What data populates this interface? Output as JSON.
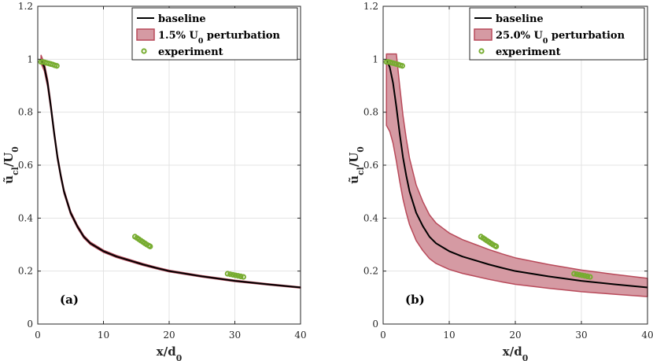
{
  "chart_data": [
    {
      "type": "line",
      "panel_label": "(a)",
      "xlabel_main": "x/d",
      "xlabel_sub": "0",
      "ylabel_main": "ũ",
      "ylabel_sub": "cl",
      "ylabel_denom": "/U",
      "ylabel_denom_sub": "0",
      "xlim": [
        0,
        40
      ],
      "ylim": [
        0,
        1.2
      ],
      "xticks": [
        0,
        10,
        20,
        30,
        40
      ],
      "xtick_labels": [
        "0",
        "10",
        "20",
        "30",
        "40"
      ],
      "yticks": [
        0,
        0.2,
        0.4,
        0.6,
        0.8,
        1.0,
        1.2
      ],
      "ytick_labels": [
        "0",
        "0.2",
        "0.4",
        "0.6",
        "0.8",
        "1",
        "1.2"
      ],
      "grid": true,
      "legend_position": "top-right",
      "legend": [
        {
          "label": "baseline",
          "kind": "line"
        },
        {
          "label": "1.5% U",
          "sub": "0",
          "suffix": " perturbation",
          "kind": "band"
        },
        {
          "label": "experiment",
          "kind": "marker"
        }
      ],
      "perturbation_fraction": 0.015,
      "series": [
        {
          "name": "baseline",
          "color": "#000000",
          "x": [
            0.5,
            1,
            1.5,
            2,
            2.5,
            3,
            3.5,
            4,
            5,
            6,
            7,
            8,
            9,
            10,
            12,
            14,
            16,
            18,
            20,
            25,
            30,
            35,
            40
          ],
          "y": [
            1.0,
            0.97,
            0.91,
            0.82,
            0.72,
            0.63,
            0.56,
            0.5,
            0.42,
            0.37,
            0.33,
            0.305,
            0.29,
            0.275,
            0.255,
            0.24,
            0.225,
            0.212,
            0.2,
            0.18,
            0.163,
            0.15,
            0.138
          ]
        },
        {
          "name": "experiment",
          "color": "#77ac30",
          "points": [
            [
              0.5,
              0.99
            ],
            [
              0.8,
              0.99
            ],
            [
              1.1,
              0.988
            ],
            [
              1.4,
              0.986
            ],
            [
              1.7,
              0.984
            ],
            [
              2.0,
              0.982
            ],
            [
              2.3,
              0.98
            ],
            [
              2.6,
              0.977
            ],
            [
              2.9,
              0.975
            ],
            [
              14.8,
              0.33
            ],
            [
              15.1,
              0.325
            ],
            [
              15.4,
              0.32
            ],
            [
              15.7,
              0.315
            ],
            [
              16.0,
              0.31
            ],
            [
              16.3,
              0.305
            ],
            [
              16.6,
              0.3
            ],
            [
              16.9,
              0.296
            ],
            [
              17.1,
              0.293
            ],
            [
              28.9,
              0.19
            ],
            [
              29.3,
              0.188
            ],
            [
              29.7,
              0.186
            ],
            [
              30.1,
              0.184
            ],
            [
              30.5,
              0.182
            ],
            [
              30.9,
              0.18
            ],
            [
              31.3,
              0.178
            ]
          ]
        }
      ]
    },
    {
      "type": "line",
      "panel_label": "(b)",
      "xlabel_main": "x/d",
      "xlabel_sub": "0",
      "ylabel_main": "ũ",
      "ylabel_sub": "cl",
      "ylabel_denom": "/U",
      "ylabel_denom_sub": "0",
      "xlim": [
        0,
        40
      ],
      "ylim": [
        0,
        1.2
      ],
      "xticks": [
        0,
        10,
        20,
        30,
        40
      ],
      "xtick_labels": [
        "0",
        "10",
        "20",
        "30",
        "40"
      ],
      "yticks": [
        0,
        0.2,
        0.4,
        0.6,
        0.8,
        1.0,
        1.2
      ],
      "ytick_labels": [
        "0",
        "0.2",
        "0.4",
        "0.6",
        "0.8",
        "1",
        "1.2"
      ],
      "grid": true,
      "legend_position": "top-right",
      "legend": [
        {
          "label": "baseline",
          "kind": "line"
        },
        {
          "label": "25.0% U",
          "sub": "0",
          "suffix": " perturbation",
          "kind": "band"
        },
        {
          "label": "experiment",
          "kind": "marker"
        }
      ],
      "perturbation_fraction": 0.25,
      "series": [
        {
          "name": "baseline",
          "color": "#000000",
          "x": [
            0.5,
            1,
            1.5,
            2,
            2.5,
            3,
            3.5,
            4,
            5,
            6,
            7,
            8,
            9,
            10,
            12,
            14,
            16,
            18,
            20,
            25,
            30,
            35,
            40
          ],
          "y": [
            1.0,
            0.97,
            0.91,
            0.82,
            0.72,
            0.63,
            0.56,
            0.5,
            0.42,
            0.37,
            0.33,
            0.305,
            0.29,
            0.275,
            0.255,
            0.24,
            0.225,
            0.212,
            0.2,
            0.18,
            0.163,
            0.15,
            0.138
          ]
        },
        {
          "name": "experiment",
          "color": "#77ac30",
          "points": [
            [
              0.5,
              0.99
            ],
            [
              0.8,
              0.99
            ],
            [
              1.1,
              0.988
            ],
            [
              1.4,
              0.986
            ],
            [
              1.7,
              0.984
            ],
            [
              2.0,
              0.982
            ],
            [
              2.3,
              0.98
            ],
            [
              2.6,
              0.977
            ],
            [
              2.9,
              0.975
            ],
            [
              14.8,
              0.33
            ],
            [
              15.1,
              0.325
            ],
            [
              15.4,
              0.32
            ],
            [
              15.7,
              0.315
            ],
            [
              16.0,
              0.31
            ],
            [
              16.3,
              0.305
            ],
            [
              16.6,
              0.3
            ],
            [
              16.9,
              0.296
            ],
            [
              17.1,
              0.293
            ],
            [
              28.9,
              0.19
            ],
            [
              29.3,
              0.188
            ],
            [
              29.7,
              0.186
            ],
            [
              30.1,
              0.184
            ],
            [
              30.5,
              0.182
            ],
            [
              30.9,
              0.18
            ],
            [
              31.3,
              0.178
            ]
          ]
        }
      ]
    }
  ],
  "colors": {
    "band_fill": "#d59aa3",
    "band_edge": "#b84a5a",
    "grid": "#e3e3e3",
    "axis": "#262626"
  }
}
